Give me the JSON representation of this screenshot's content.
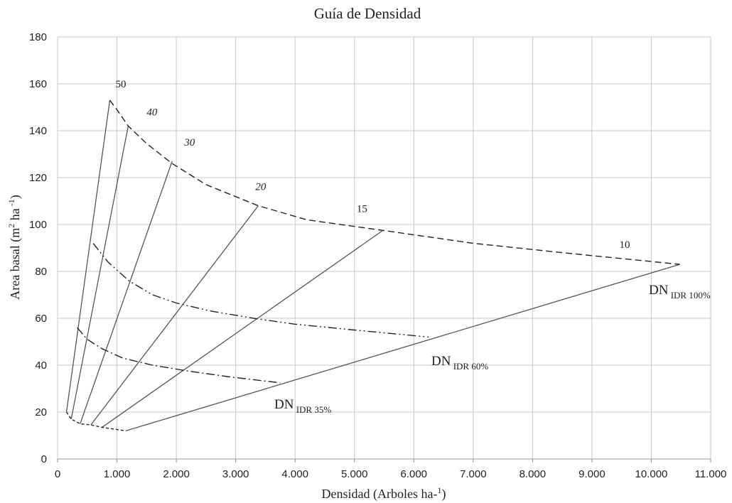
{
  "chart_data": {
    "type": "line",
    "title": "Guía de Densidad",
    "xlabel_main": "Densidad (Arboles ha-",
    "xlabel_sup": "1",
    "xlabel_end": ")",
    "ylabel_main": "Area basal (m",
    "ylabel_sup1": "2",
    "ylabel_mid": " ha",
    "ylabel_sup2": " -1",
    "ylabel_end": ")",
    "xlim": [
      0,
      11000
    ],
    "ylim": [
      0,
      180
    ],
    "x_ticks": [
      {
        "value": 0,
        "label": "0"
      },
      {
        "value": 1000,
        "label": "1.000"
      },
      {
        "value": 2000,
        "label": "2.000"
      },
      {
        "value": 3000,
        "label": "3.000"
      },
      {
        "value": 4000,
        "label": "4.000"
      },
      {
        "value": 5000,
        "label": "5.000"
      },
      {
        "value": 6000,
        "label": "6.000"
      },
      {
        "value": 7000,
        "label": "7.000"
      },
      {
        "value": 8000,
        "label": "8.000"
      },
      {
        "value": 9000,
        "label": "9.000"
      },
      {
        "value": 10000,
        "label": "10.000"
      },
      {
        "value": 11000,
        "label": "11.000"
      }
    ],
    "y_ticks": [
      {
        "value": 0,
        "label": "0"
      },
      {
        "value": 20,
        "label": "20"
      },
      {
        "value": 40,
        "label": "40"
      },
      {
        "value": 60,
        "label": "60"
      },
      {
        "value": 80,
        "label": "80"
      },
      {
        "value": 100,
        "label": "100"
      },
      {
        "value": 120,
        "label": "120"
      },
      {
        "value": 140,
        "label": "140"
      },
      {
        "value": 160,
        "label": "160"
      },
      {
        "value": 180,
        "label": "180"
      }
    ],
    "grid": true,
    "colors": {
      "grid": "#c8c8c8",
      "lines": "#555555",
      "curves": "#222222"
    },
    "diameter_lines": [
      {
        "label": "50",
        "italic": false,
        "from": [
          150,
          20
        ],
        "to": [
          880,
          153
        ]
      },
      {
        "label": "40",
        "italic": true,
        "from": [
          230,
          17
        ],
        "to": [
          1190,
          142
        ]
      },
      {
        "label": "30",
        "italic": true,
        "from": [
          380,
          15
        ],
        "to": [
          1930,
          127
        ]
      },
      {
        "label": "20",
        "italic": true,
        "from": [
          560,
          14.5
        ],
        "to": [
          3380,
          108
        ]
      },
      {
        "label": "15",
        "italic": false,
        "from": [
          750,
          13.5
        ],
        "to": [
          5480,
          97.5
        ]
      },
      {
        "label": "10",
        "italic": false,
        "from": [
          1150,
          12
        ],
        "to": [
          10480,
          83
        ]
      }
    ],
    "idr_curves": [
      {
        "name_main": "DN",
        "name_sub": " IDR 100%",
        "style": "dashed",
        "points": [
          [
            880,
            153
          ],
          [
            1000,
            149
          ],
          [
            1190,
            142
          ],
          [
            1500,
            134.5
          ],
          [
            1930,
            126
          ],
          [
            2500,
            117
          ],
          [
            3380,
            108
          ],
          [
            4200,
            102
          ],
          [
            5480,
            97.5
          ],
          [
            7000,
            92
          ],
          [
            8500,
            88
          ],
          [
            10480,
            83
          ]
        ]
      },
      {
        "name_main": "DN",
        "name_sub": " IDR 60%",
        "style": "dash-dot-dot",
        "points": [
          [
            600,
            92
          ],
          [
            850,
            84
          ],
          [
            1200,
            76
          ],
          [
            1600,
            70
          ],
          [
            2000,
            66.5
          ],
          [
            2600,
            63
          ],
          [
            3300,
            60
          ],
          [
            4000,
            57.5
          ],
          [
            5000,
            55
          ],
          [
            6250,
            52
          ]
        ]
      },
      {
        "name_main": "DN",
        "name_sub": " IDR 35%",
        "style": "dash-dot",
        "points": [
          [
            330,
            56
          ],
          [
            500,
            51
          ],
          [
            750,
            47
          ],
          [
            1100,
            43
          ],
          [
            1600,
            40
          ],
          [
            2200,
            37.5
          ],
          [
            2900,
            35
          ],
          [
            3750,
            32.5
          ]
        ]
      },
      {
        "name_main": "",
        "name_sub": "",
        "style": "short-dash",
        "points": [
          [
            150,
            20
          ],
          [
            230,
            17
          ],
          [
            380,
            15
          ],
          [
            560,
            14.5
          ],
          [
            750,
            13.5
          ],
          [
            1150,
            12
          ]
        ]
      }
    ]
  }
}
